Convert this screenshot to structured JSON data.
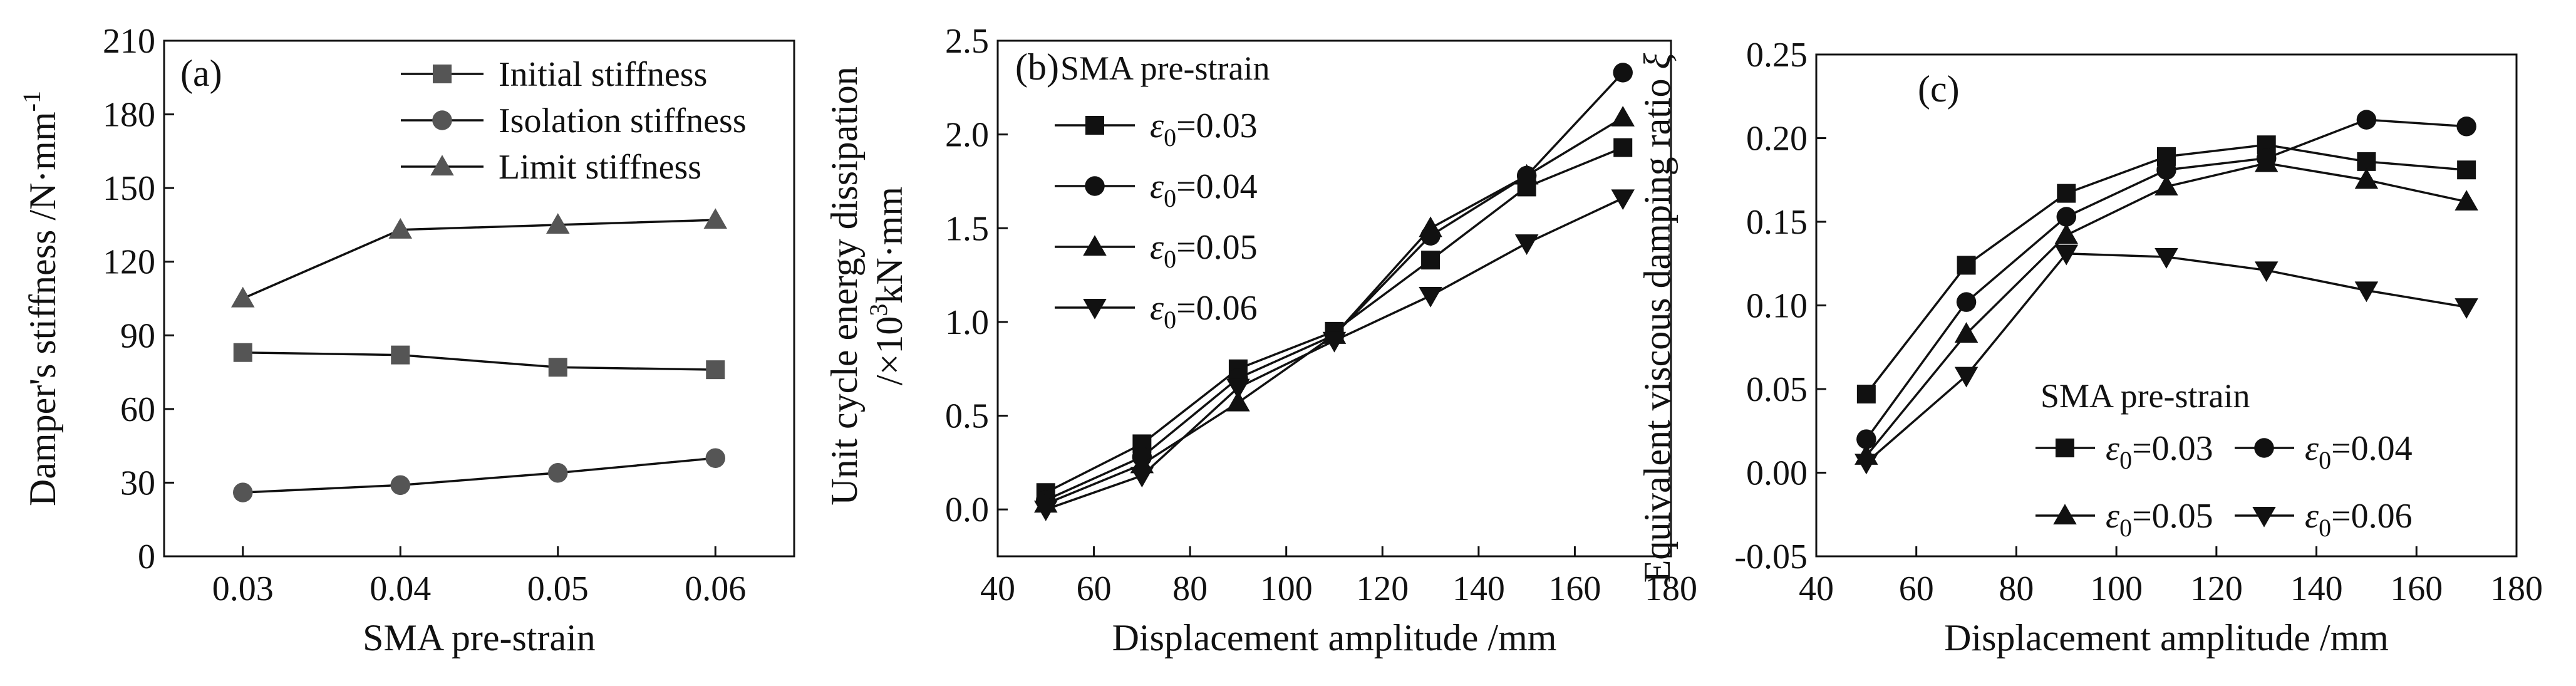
{
  "chart_data": [
    {
      "id": "a",
      "type": "line",
      "panel_label": "(a)",
      "xlabel": "SMA pre-strain",
      "ylabel": "Damper's stiffness /N·mm",
      "ylabel_superscript": "-1",
      "categories": [
        "0.03",
        "0.04",
        "0.05",
        "0.06"
      ],
      "ylim": [
        0,
        210
      ],
      "yticks": [
        0,
        30,
        60,
        90,
        120,
        150,
        180,
        210
      ],
      "legend_title": "",
      "legend_position": "top-right",
      "series": [
        {
          "name": "Initial stiffness",
          "marker": "square",
          "color": "#555555",
          "values": [
            83,
            82,
            77,
            76
          ]
        },
        {
          "name": "Isolation stiffness",
          "marker": "circle",
          "color": "#555555",
          "values": [
            26,
            29,
            34,
            40
          ]
        },
        {
          "name": "Limit stiffness",
          "marker": "triangle-up",
          "color": "#555555",
          "values": [
            105,
            133,
            135,
            137
          ]
        }
      ]
    },
    {
      "id": "b",
      "type": "line",
      "panel_label": "(b)",
      "xlabel": "Displacement amplitude /mm",
      "ylabel_line1": "Unit cycle energy dissipation",
      "ylabel_line2_prefix": "/×10",
      "ylabel_line2_superscript": "3",
      "ylabel_line2_suffix": "kN·mm",
      "x": [
        50,
        70,
        90,
        110,
        130,
        150,
        170
      ],
      "xlim": [
        40,
        180
      ],
      "xticks": [
        40,
        60,
        80,
        100,
        120,
        140,
        160,
        180
      ],
      "ylim": [
        -0.25,
        2.5
      ],
      "yticks": [
        0.0,
        0.5,
        1.0,
        1.5,
        2.0,
        2.5
      ],
      "ytick_labels": [
        "0.0",
        "0.5",
        "1.0",
        "1.5",
        "2.0",
        "2.5"
      ],
      "legend_title": "SMA pre-strain",
      "legend_position": "top-left",
      "series": [
        {
          "name": "0.03",
          "label_prefix": "ε",
          "label_sub": "0",
          "label_suffix": "=0.03",
          "marker": "square",
          "color": "#111111",
          "values": [
            0.09,
            0.35,
            0.75,
            0.95,
            1.33,
            1.72,
            1.93
          ]
        },
        {
          "name": "0.04",
          "label_prefix": "ε",
          "label_sub": "0",
          "label_suffix": "=0.04",
          "marker": "circle",
          "color": "#111111",
          "values": [
            0.05,
            0.28,
            0.7,
            0.93,
            1.46,
            1.78,
            2.33
          ]
        },
        {
          "name": "0.05",
          "label_prefix": "ε",
          "label_sub": "0",
          "label_suffix": "=0.05",
          "marker": "triangle-up",
          "color": "#111111",
          "values": [
            0.03,
            0.24,
            0.57,
            0.93,
            1.5,
            1.78,
            2.09
          ]
        },
        {
          "name": "0.06",
          "label_prefix": "ε",
          "label_sub": "0",
          "label_suffix": "=0.06",
          "marker": "triangle-down",
          "color": "#111111",
          "values": [
            0.0,
            0.18,
            0.65,
            0.9,
            1.14,
            1.42,
            1.66
          ]
        }
      ]
    },
    {
      "id": "c",
      "type": "line",
      "panel_label": "(c)",
      "xlabel": "Displacement amplitude /mm",
      "ylabel": "Equivalent viscous damping ratio ",
      "ylabel_symbol": "ξ",
      "x": [
        50,
        70,
        90,
        110,
        130,
        150,
        170
      ],
      "xlim": [
        40,
        180
      ],
      "xticks": [
        40,
        60,
        80,
        100,
        120,
        140,
        160,
        180
      ],
      "ylim": [
        -0.05,
        0.25
      ],
      "yticks": [
        -0.05,
        0.0,
        0.05,
        0.1,
        0.15,
        0.2,
        0.25
      ],
      "ytick_labels": [
        "-0.05",
        "0.00",
        "0.05",
        "0.10",
        "0.15",
        "0.20",
        "0.25"
      ],
      "legend_title": "SMA pre-strain",
      "legend_position": "bottom-right",
      "series": [
        {
          "name": "0.03",
          "label_prefix": "ε",
          "label_sub": "0",
          "label_suffix": "=0.03",
          "marker": "square",
          "color": "#111111",
          "values": [
            0.047,
            0.124,
            0.167,
            0.189,
            0.196,
            0.186,
            0.181
          ]
        },
        {
          "name": "0.04",
          "label_prefix": "ε",
          "label_sub": "0",
          "label_suffix": "=0.04",
          "marker": "circle",
          "color": "#111111",
          "values": [
            0.02,
            0.102,
            0.153,
            0.181,
            0.188,
            0.211,
            0.207
          ]
        },
        {
          "name": "0.05",
          "label_prefix": "ε",
          "label_sub": "0",
          "label_suffix": "=0.05",
          "marker": "triangle-up",
          "color": "#111111",
          "values": [
            0.01,
            0.083,
            0.142,
            0.171,
            0.185,
            0.175,
            0.162
          ]
        },
        {
          "name": "0.06",
          "label_prefix": "ε",
          "label_sub": "0",
          "label_suffix": "=0.06",
          "marker": "triangle-down",
          "color": "#111111",
          "values": [
            0.006,
            0.058,
            0.131,
            0.129,
            0.121,
            0.109,
            0.099
          ]
        }
      ]
    }
  ]
}
